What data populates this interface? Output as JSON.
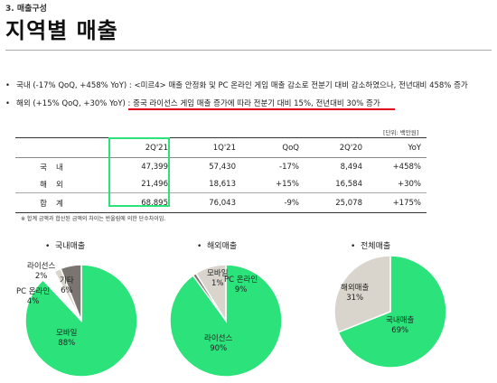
{
  "header": {
    "section": "3. 매출구성",
    "title": "지역별 매출"
  },
  "bullets": [
    {
      "dot": "•",
      "text": "국내 (-17% QoQ, +458% YoY) : <미르4> 매출 안정화 및 PC 온라인 게임 매출 감소로 전분기 대비 감소하였으나, 전년대비 458% 증가"
    },
    {
      "dot": "•",
      "text_prefix": "해외 (+15% QoQ, +30% YoY) : ",
      "text_highlight": "중국 라이선스 게임 매출 증가에 따라 전분기 대비 15%, 전년대비 30% 증가"
    }
  ],
  "table": {
    "unit": "[단위: 백만원]",
    "columns": [
      "",
      "2Q'21",
      "1Q'21",
      "QoQ",
      "2Q'20",
      "YoY"
    ],
    "rows": [
      {
        "label": "국내",
        "cells": [
          "47,399",
          "57,430",
          "-17%",
          "8,494",
          "+458%"
        ]
      },
      {
        "label": "해외",
        "cells": [
          "21,496",
          "18,613",
          "+15%",
          "16,584",
          "+30%"
        ]
      },
      {
        "label": "합계",
        "cells": [
          "68,895",
          "76,043",
          "-9%",
          "25,078",
          "+175%"
        ]
      }
    ],
    "footnote": "※ 합계 금액과 합산된 금액의 차이는 반올림에 의한 단수차이임."
  },
  "colors": {
    "green": "#2be37a",
    "gray": "#7a7570",
    "light": "#d9d4cc",
    "red": "#e0001b"
  },
  "chart_data": [
    {
      "type": "pie",
      "title": "국내매출",
      "slices": [
        {
          "label": "모바일",
          "value": 88,
          "text": "88%",
          "color": "#2be37a"
        },
        {
          "label": "PC 온라인",
          "value": 4,
          "text": "4%",
          "color": "#ffffff"
        },
        {
          "label": "라이선스",
          "value": 2,
          "text": "2%",
          "color": "#d9d4cc"
        },
        {
          "label": "기타",
          "value": 6,
          "text": "6%",
          "color": "#7a7570"
        }
      ]
    },
    {
      "type": "pie",
      "title": "해외매출",
      "slices": [
        {
          "label": "라이선스",
          "value": 90,
          "text": "90%",
          "color": "#2be37a"
        },
        {
          "label": "모바일",
          "value": 1,
          "text": "1%",
          "color": "#7a7570"
        },
        {
          "label": "PC 온라인",
          "value": 9,
          "text": "9%",
          "color": "#d9d4cc"
        }
      ]
    },
    {
      "type": "pie",
      "title": "전체매출",
      "slices": [
        {
          "label": "국내매출",
          "value": 69,
          "text": "69%",
          "color": "#2be37a"
        },
        {
          "label": "해외매출",
          "value": 31,
          "text": "31%",
          "color": "#d9d4cc"
        }
      ]
    }
  ]
}
